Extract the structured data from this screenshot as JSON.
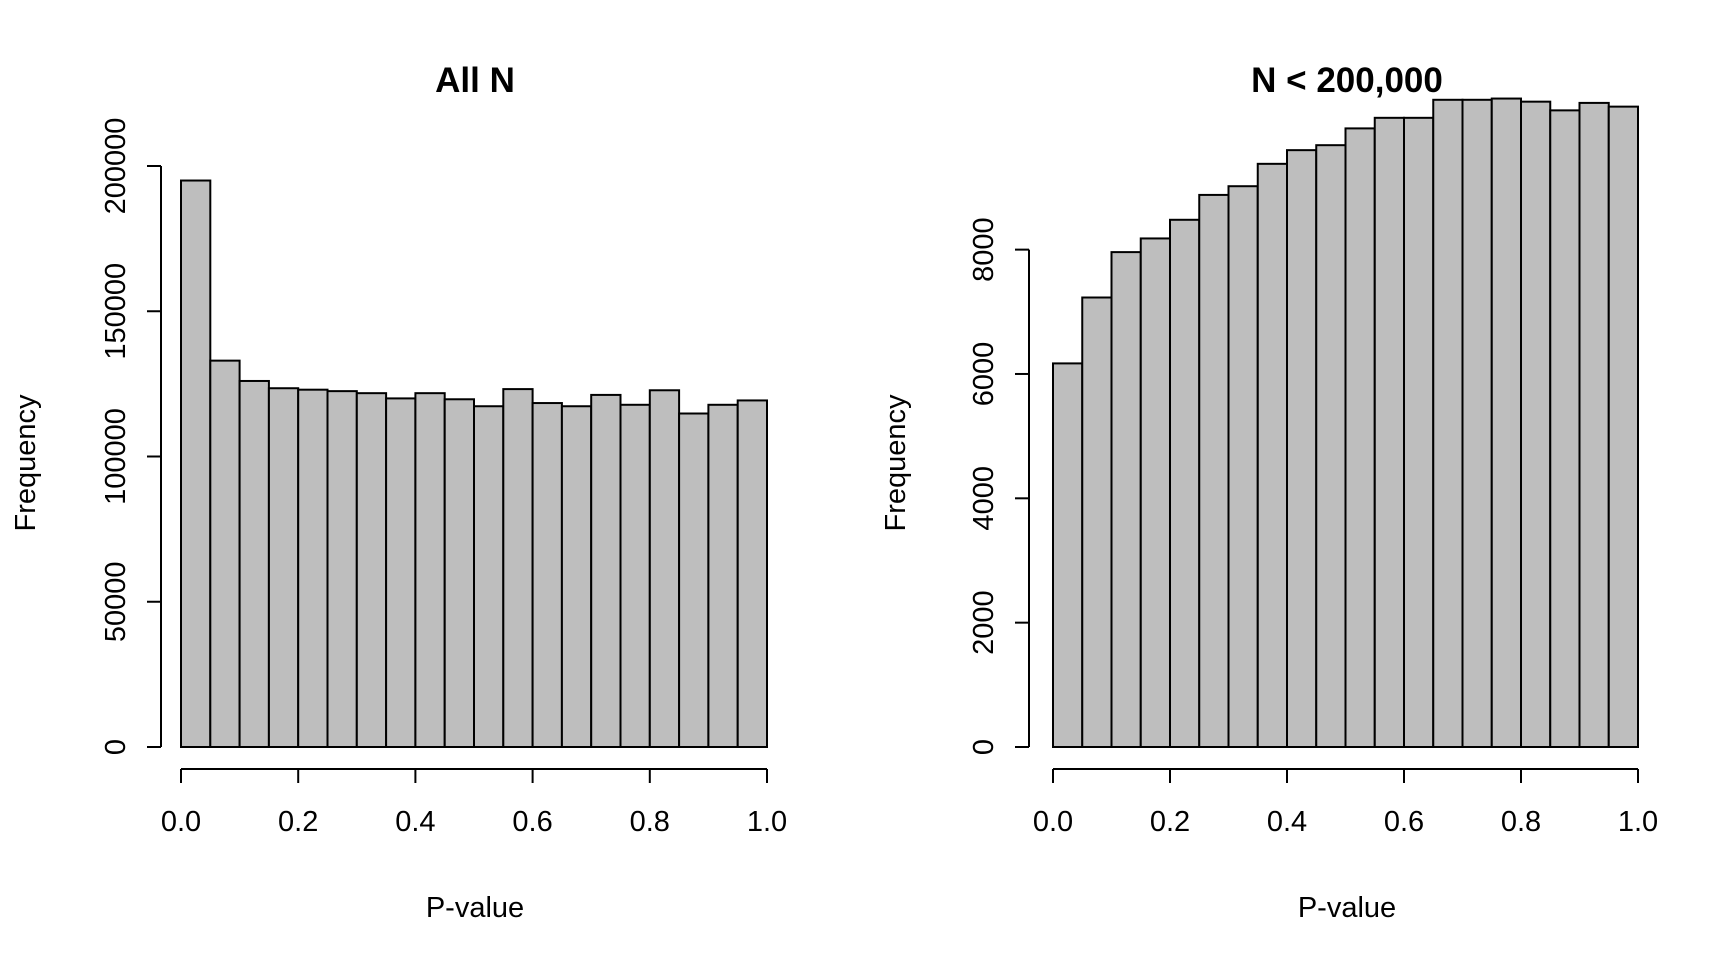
{
  "chart_data": [
    {
      "type": "bar",
      "title": "All N",
      "xlabel": "P-value",
      "ylabel": "Frequency",
      "bin_edges": [
        0.0,
        0.05,
        0.1,
        0.15,
        0.2,
        0.25,
        0.3,
        0.35,
        0.4,
        0.45,
        0.5,
        0.55,
        0.6,
        0.65,
        0.7,
        0.75,
        0.8,
        0.85,
        0.9,
        0.95,
        1.0
      ],
      "values": [
        195000,
        133000,
        126000,
        123500,
        123000,
        122500,
        121800,
        120000,
        121800,
        119700,
        117300,
        123200,
        118400,
        117300,
        121200,
        117800,
        122800,
        114800,
        117800,
        119300
      ],
      "xlim": [
        0,
        1
      ],
      "ylim": [
        0,
        200000
      ],
      "x_ticks": [
        "0.0",
        "0.2",
        "0.4",
        "0.6",
        "0.8",
        "1.0"
      ],
      "y_ticks": [
        "0",
        "50000",
        "100000",
        "150000",
        "200000"
      ],
      "grid": false,
      "legend": "none"
    },
    {
      "type": "bar",
      "title": "N < 200,000",
      "xlabel": "P-value",
      "ylabel": "Frequency",
      "bin_edges": [
        0.0,
        0.05,
        0.1,
        0.15,
        0.2,
        0.25,
        0.3,
        0.35,
        0.4,
        0.45,
        0.5,
        0.55,
        0.6,
        0.65,
        0.7,
        0.75,
        0.8,
        0.85,
        0.9,
        0.95,
        1.0
      ],
      "values": [
        6170,
        7230,
        7960,
        8180,
        8480,
        8880,
        9020,
        9380,
        9600,
        9680,
        9950,
        10120,
        10120,
        10410,
        10410,
        10430,
        10380,
        10240,
        10360,
        10300
      ],
      "xlim": [
        0,
        1
      ],
      "ylim": [
        0,
        10000
      ],
      "x_ticks": [
        "0.0",
        "0.2",
        "0.4",
        "0.6",
        "0.8",
        "1.0"
      ],
      "y_ticks": [
        "0",
        "2000",
        "4000",
        "6000",
        "8000"
      ],
      "grid": false,
      "legend": "none"
    }
  ]
}
